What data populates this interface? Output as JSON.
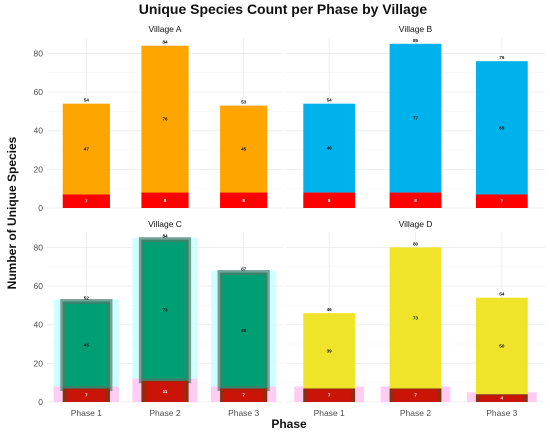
{
  "chart_data": {
    "type": "bar",
    "title": "Unique Species Count per Phase by Village",
    "xlabel": "Phase",
    "ylabel": "Number of Unique Species",
    "categories": [
      "Phase 1",
      "Phase 2",
      "Phase 3"
    ],
    "ylim": [
      0,
      88
    ],
    "yticks": [
      0,
      20,
      40,
      60,
      80
    ],
    "grid": true,
    "legend": "none",
    "colors": {
      "red": "#ff0000",
      "dark_red": "#8b2e12",
      "cyan_glow": "#ccffff",
      "pink_glow": "#ffccf2"
    },
    "facets": [
      {
        "name": "Village A",
        "color": "#ffa500",
        "glow": false,
        "totals": [
          54,
          84,
          53
        ],
        "base": [
          7,
          8,
          8
        ],
        "top": [
          47,
          76,
          45
        ],
        "base_labels": [
          "7",
          "8",
          "8"
        ],
        "top_labels": [
          "47",
          "76",
          "45"
        ],
        "total_labels": [
          "54",
          "84",
          "53"
        ]
      },
      {
        "name": "Village B",
        "color": "#00b2ec",
        "glow": false,
        "totals": [
          54,
          85,
          76
        ],
        "base": [
          8,
          8,
          7
        ],
        "top": [
          46,
          77,
          69
        ],
        "base_labels": [
          "8",
          "8",
          "7"
        ],
        "top_labels": [
          "46",
          "77",
          "69"
        ],
        "total_labels": [
          "54",
          "85",
          "76"
        ]
      },
      {
        "name": "Village C",
        "color": "#009e73",
        "glow": true,
        "totals": [
          52,
          84,
          67
        ],
        "base": [
          7,
          11,
          7
        ],
        "top": [
          45,
          73,
          60
        ],
        "base_labels": [
          "7",
          "11",
          "7"
        ],
        "top_labels": [
          "45",
          "73",
          "60"
        ],
        "total_labels": [
          "52",
          "84",
          "67"
        ]
      },
      {
        "name": "Village D",
        "color": "#f0e42a",
        "glow": true,
        "totals": [
          46,
          80,
          54
        ],
        "base": [
          7,
          7,
          4
        ],
        "top": [
          39,
          73,
          50
        ],
        "base_labels": [
          "7",
          "7",
          "4"
        ],
        "top_labels": [
          "39",
          "73",
          "50"
        ],
        "total_labels": [
          "46",
          "80",
          "54"
        ]
      }
    ]
  }
}
